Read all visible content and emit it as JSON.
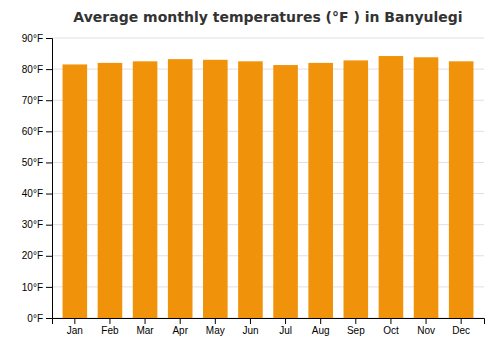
{
  "chart_data": {
    "type": "bar",
    "title": "Average monthly temperatures (°F ) in Banyulegi",
    "categories": [
      "Jan",
      "Feb",
      "Mar",
      "Apr",
      "May",
      "Jun",
      "Jul",
      "Aug",
      "Sep",
      "Oct",
      "Nov",
      "Dec"
    ],
    "values": [
      81.5,
      82.0,
      82.5,
      83.2,
      83.0,
      82.5,
      81.3,
      82.0,
      82.8,
      84.2,
      83.8,
      82.5
    ],
    "color": "#F0920A",
    "ylim": [
      0,
      90
    ],
    "yticks": [
      {
        "value": 0,
        "label": "0°F"
      },
      {
        "value": 10,
        "label": "10°F"
      },
      {
        "value": 20,
        "label": "20°F"
      },
      {
        "value": 30,
        "label": "30°F"
      },
      {
        "value": 40,
        "label": "40°F"
      },
      {
        "value": 50,
        "label": "50°F"
      },
      {
        "value": 60,
        "label": "60°F"
      },
      {
        "value": 70,
        "label": "70°F"
      },
      {
        "value": 80,
        "label": "80°F"
      },
      {
        "value": 90,
        "label": "90°F"
      }
    ],
    "grid": true
  }
}
